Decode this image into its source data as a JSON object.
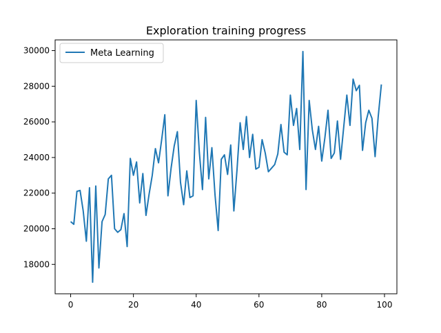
{
  "chart_data": {
    "type": "line",
    "title": "Exploration training progress",
    "xlabel": "",
    "ylabel": "",
    "xlim": [
      -4.95,
      103.95
    ],
    "ylim": [
      16350,
      30600
    ],
    "xticks": [
      0,
      20,
      40,
      60,
      80,
      100
    ],
    "yticks": [
      18000,
      20000,
      22000,
      24000,
      26000,
      28000,
      30000
    ],
    "grid": false,
    "legend": {
      "placement": "upper-left"
    },
    "series": [
      {
        "name": "Meta Learning",
        "color": "#1f77b4",
        "x": [
          0,
          1,
          2,
          3,
          4,
          5,
          6,
          7,
          8,
          9,
          10,
          11,
          12,
          13,
          14,
          15,
          16,
          17,
          18,
          19,
          20,
          21,
          22,
          23,
          24,
          25,
          26,
          27,
          28,
          29,
          30,
          31,
          32,
          33,
          34,
          35,
          36,
          37,
          38,
          39,
          40,
          41,
          42,
          43,
          44,
          45,
          46,
          47,
          48,
          49,
          50,
          51,
          52,
          53,
          54,
          55,
          56,
          57,
          58,
          59,
          60,
          61,
          62,
          63,
          64,
          65,
          66,
          67,
          68,
          69,
          70,
          71,
          72,
          73,
          74,
          75,
          76,
          77,
          78,
          79,
          80,
          81,
          82,
          83,
          84,
          85,
          86,
          87,
          88,
          89,
          90,
          91,
          92,
          93,
          94,
          95,
          96,
          97,
          98,
          99
        ],
        "values": [
          20400,
          20250,
          22100,
          22150,
          21000,
          19300,
          22300,
          17000,
          22400,
          17800,
          20400,
          20800,
          22800,
          23000,
          20000,
          19800,
          19950,
          20850,
          19000,
          23950,
          23000,
          23750,
          21450,
          23100,
          20750,
          21950,
          23000,
          24500,
          23700,
          25000,
          26400,
          21850,
          23400,
          24650,
          25450,
          22600,
          21350,
          23250,
          21750,
          21850,
          27200,
          24300,
          22200,
          26250,
          22800,
          24550,
          21900,
          19900,
          23900,
          24150,
          23050,
          24700,
          21000,
          23300,
          25950,
          24450,
          26300,
          24000,
          25300,
          23350,
          23450,
          25000,
          24250,
          23200,
          23400,
          23600,
          24200,
          25850,
          24300,
          24150,
          27500,
          25800,
          26750,
          24450,
          29950,
          22200,
          27200,
          25550,
          24450,
          25750,
          23800,
          25100,
          26650,
          23950,
          24250,
          26050,
          23900,
          25700,
          27500,
          25800,
          28400,
          27750,
          28050,
          24400,
          25950,
          26650,
          26200,
          24050,
          26300,
          28100
        ]
      }
    ]
  }
}
